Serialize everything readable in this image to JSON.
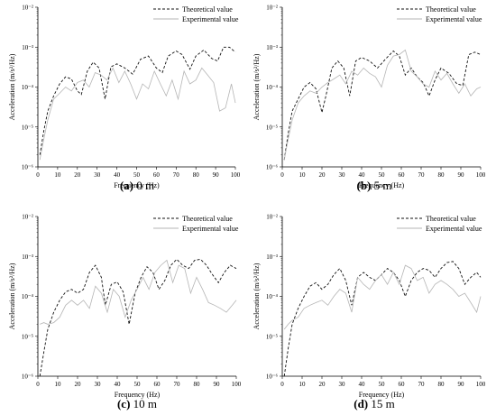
{
  "legend": {
    "theoretical": "Theoretical value",
    "experimental": "Experimental value"
  },
  "colors": {
    "theoretical": "#111111",
    "experimental": "#b5b5b5",
    "axis": "#000000"
  },
  "chart_data": [
    {
      "type": "line",
      "caption": {
        "letter": "(a)",
        "text": " 0 m"
      },
      "xlabel": "Frequency (Hz)",
      "ylabel": "Acceleration (m/s²/Hz)",
      "xlim": [
        0,
        100
      ],
      "ylim": [
        1e-06,
        0.01
      ],
      "yscale": "log",
      "xticks": [
        0,
        10,
        20,
        30,
        40,
        50,
        60,
        70,
        80,
        90,
        100
      ],
      "yticks": [
        {
          "v": 1e-06,
          "t": "10⁻⁶"
        },
        {
          "v": 1e-05,
          "t": "10⁻⁵"
        },
        {
          "v": 0.0001,
          "t": "10⁻⁴"
        },
        {
          "v": 0.001,
          "t": "10⁻³"
        },
        {
          "v": 0.01,
          "t": "10⁻²"
        }
      ],
      "series": [
        {
          "name": "Theoretical value",
          "style": "dashed",
          "x": [
            1,
            3,
            5,
            8,
            11,
            14,
            17,
            20,
            22,
            25,
            28,
            31,
            34,
            37,
            40,
            44,
            48,
            52,
            56,
            60,
            63,
            66,
            70,
            73,
            77,
            80,
            84,
            88,
            91,
            94,
            97,
            100
          ],
          "y": [
            2e-06,
            8e-06,
            2.5e-05,
            6e-05,
            0.00012,
            0.00018,
            0.00016,
            8e-05,
            6.5e-05,
            0.00025,
            0.00042,
            0.0003,
            5e-05,
            0.00032,
            0.00038,
            0.0003,
            0.00021,
            0.0005,
            0.0006,
            0.0003,
            0.00023,
            0.0006,
            0.0008,
            0.00065,
            0.00028,
            0.0006,
            0.00085,
            0.00052,
            0.00045,
            0.001,
            0.001,
            0.00075
          ]
        },
        {
          "name": "Experimental value",
          "style": "solid",
          "x": [
            1,
            3,
            5,
            8,
            11,
            14,
            17,
            20,
            23,
            26,
            29,
            32,
            35,
            38,
            41,
            44,
            47,
            50,
            53,
            56,
            59,
            62,
            65,
            68,
            71,
            74,
            77,
            80,
            83,
            86,
            89,
            92,
            95,
            98,
            100
          ],
          "y": [
            1.5e-06,
            5e-06,
            1.5e-05,
            5e-05,
            7e-05,
            0.0001,
            8e-05,
            0.00013,
            0.00015,
            0.0001,
            0.00023,
            0.0002,
            0.00015,
            0.0003,
            0.00013,
            0.00025,
            0.00012,
            5e-05,
            0.00012,
            9e-05,
            0.00025,
            0.00012,
            6e-05,
            0.00015,
            5e-05,
            0.00025,
            0.00012,
            0.00015,
            0.0003,
            0.0002,
            0.00013,
            2.5e-05,
            3e-05,
            0.00012,
            4e-05
          ]
        }
      ]
    },
    {
      "type": "line",
      "caption": {
        "letter": "(b)",
        "text": " 5 m"
      },
      "xlabel": "Frequency (Hz)",
      "ylabel": "Acceleration (m/s²/Hz)",
      "xlim": [
        0,
        100
      ],
      "ylim": [
        1e-06,
        0.01
      ],
      "yscale": "log",
      "xticks": [
        0,
        10,
        20,
        30,
        40,
        50,
        60,
        70,
        80,
        90,
        100
      ],
      "yticks": [
        {
          "v": 1e-06,
          "t": "10⁻⁶"
        },
        {
          "v": 1e-05,
          "t": "10⁻⁵"
        },
        {
          "v": 0.0001,
          "t": "10⁻⁴"
        },
        {
          "v": 0.001,
          "t": "10⁻³"
        },
        {
          "v": 0.01,
          "t": "10⁻²"
        }
      ],
      "series": [
        {
          "name": "Theoretical value",
          "style": "dashed",
          "x": [
            1,
            3,
            5,
            8,
            11,
            14,
            17,
            20,
            22,
            25,
            28,
            31,
            34,
            37,
            40,
            44,
            48,
            52,
            56,
            59,
            62,
            65,
            68,
            71,
            74,
            77,
            80,
            84,
            88,
            91,
            94,
            97,
            100
          ],
          "y": [
            1.5e-06,
            7e-06,
            2.5e-05,
            5e-05,
            0.0001,
            0.00013,
            9e-05,
            2.3e-05,
            6e-05,
            0.0003,
            0.00045,
            0.0003,
            6e-05,
            0.00045,
            0.00055,
            0.00045,
            0.0003,
            0.0005,
            0.0008,
            0.0006,
            0.0002,
            0.0003,
            0.00018,
            0.00013,
            6e-05,
            0.00015,
            0.0003,
            0.00022,
            0.00012,
            0.00011,
            0.00065,
            0.00075,
            0.00065
          ]
        },
        {
          "name": "Experimental value",
          "style": "solid",
          "x": [
            1,
            3,
            5,
            8,
            11,
            14,
            17,
            20,
            23,
            26,
            29,
            32,
            35,
            38,
            41,
            44,
            47,
            50,
            53,
            56,
            59,
            62,
            65,
            68,
            71,
            74,
            77,
            80,
            83,
            86,
            89,
            92,
            95,
            98,
            100
          ],
          "y": [
            1.5e-06,
            5e-06,
            1.5e-05,
            4e-05,
            6e-05,
            8e-05,
            7e-05,
            0.0001,
            0.00013,
            0.00016,
            0.0002,
            0.00012,
            0.00025,
            0.0002,
            0.0003,
            0.00022,
            0.00018,
            0.0001,
            0.00035,
            0.0006,
            0.00065,
            0.00085,
            0.00025,
            0.00018,
            0.00012,
            0.0001,
            0.00025,
            0.00015,
            0.00022,
            0.00012,
            7e-05,
            0.00012,
            6e-05,
            9e-05,
            0.0001
          ]
        }
      ]
    },
    {
      "type": "line",
      "caption": {
        "letter": "(c)",
        "text": " 10 m"
      },
      "xlabel": "Frequency (Hz)",
      "ylabel": "Acceleration (m/s²/Hz)",
      "xlim": [
        0,
        100
      ],
      "ylim": [
        1e-06,
        0.01
      ],
      "yscale": "log",
      "xticks": [
        0,
        10,
        20,
        30,
        40,
        50,
        60,
        70,
        80,
        90,
        100
      ],
      "yticks": [
        {
          "v": 1e-06,
          "t": "10⁻⁶"
        },
        {
          "v": 1e-05,
          "t": "10⁻⁵"
        },
        {
          "v": 0.0001,
          "t": "10⁻⁴"
        },
        {
          "v": 0.001,
          "t": "10⁻³"
        },
        {
          "v": 0.01,
          "t": "10⁻²"
        }
      ],
      "series": [
        {
          "name": "Theoretical value",
          "style": "dashed",
          "x": [
            1,
            3,
            5,
            8,
            11,
            14,
            17,
            20,
            23,
            26,
            29,
            32,
            34,
            37,
            40,
            43,
            46,
            49,
            52,
            55,
            58,
            61,
            64,
            67,
            70,
            73,
            76,
            79,
            82,
            85,
            88,
            91,
            94,
            97,
            100
          ],
          "y": [
            1e-06,
            4e-06,
            1.5e-05,
            4e-05,
            8e-05,
            0.00013,
            0.00015,
            0.00012,
            0.00015,
            0.0004,
            0.0006,
            0.0003,
            6e-05,
            0.0002,
            0.00023,
            0.00013,
            2e-05,
            0.00012,
            0.0003,
            0.00055,
            0.0004,
            0.00015,
            0.00025,
            0.0006,
            0.00085,
            0.0006,
            0.0005,
            0.0008,
            0.00085,
            0.0006,
            0.00035,
            0.00022,
            0.0004,
            0.0006,
            0.0005
          ]
        },
        {
          "name": "Experimental value",
          "style": "solid",
          "x": [
            1,
            3,
            5,
            8,
            11,
            14,
            17,
            20,
            23,
            26,
            29,
            32,
            35,
            38,
            41,
            44,
            47,
            50,
            53,
            56,
            59,
            62,
            65,
            68,
            71,
            74,
            77,
            80,
            83,
            86,
            89,
            92,
            95,
            98,
            100
          ],
          "y": [
            2e-05,
            2.2e-05,
            2e-05,
            2.2e-05,
            3e-05,
            6e-05,
            8e-05,
            6e-05,
            8e-05,
            5e-05,
            0.00018,
            0.00012,
            4e-05,
            0.00015,
            0.0001,
            3e-05,
            8e-05,
            0.00015,
            0.0003,
            0.00015,
            0.0004,
            0.0006,
            0.0008,
            0.00022,
            0.0006,
            0.0005,
            0.00012,
            0.0003,
            0.00015,
            7e-05,
            6e-05,
            5e-05,
            4e-05,
            6e-05,
            8e-05
          ]
        }
      ]
    },
    {
      "type": "line",
      "caption": {
        "letter": "(d)",
        "text": " 15 m"
      },
      "xlabel": "Frequency (Hz)",
      "ylabel": "Acceleration (m/s²/Hz)",
      "xlim": [
        0,
        100
      ],
      "ylim": [
        1e-06,
        0.01
      ],
      "yscale": "log",
      "xticks": [
        0,
        10,
        20,
        30,
        40,
        50,
        60,
        70,
        80,
        90,
        100
      ],
      "yticks": [
        {
          "v": 1e-06,
          "t": "10⁻⁶"
        },
        {
          "v": 1e-05,
          "t": "10⁻⁵"
        },
        {
          "v": 0.0001,
          "t": "10⁻⁴"
        },
        {
          "v": 0.001,
          "t": "10⁻³"
        },
        {
          "v": 0.01,
          "t": "10⁻²"
        }
      ],
      "series": [
        {
          "name": "Theoretical value",
          "style": "dashed",
          "x": [
            1,
            3,
            5,
            8,
            11,
            14,
            17,
            20,
            23,
            26,
            29,
            32,
            35,
            38,
            41,
            44,
            47,
            50,
            53,
            56,
            59,
            62,
            65,
            68,
            71,
            74,
            77,
            80,
            83,
            86,
            89,
            92,
            95,
            98,
            100
          ],
          "y": [
            1e-06,
            5e-06,
            2e-05,
            5e-05,
            0.0001,
            0.00018,
            0.00022,
            0.00015,
            0.0002,
            0.00035,
            0.0005,
            0.00025,
            6e-05,
            0.0003,
            0.0004,
            0.0003,
            0.00025,
            0.00035,
            0.0005,
            0.0004,
            0.00025,
            0.0001,
            0.00025,
            0.0004,
            0.0005,
            0.00045,
            0.0003,
            0.0005,
            0.0007,
            0.00075,
            0.0005,
            0.0002,
            0.0003,
            0.0004,
            0.0003
          ]
        },
        {
          "name": "Experimental value",
          "style": "solid",
          "x": [
            1,
            3,
            5,
            8,
            11,
            14,
            17,
            20,
            23,
            26,
            29,
            32,
            35,
            38,
            41,
            44,
            47,
            50,
            53,
            56,
            59,
            62,
            65,
            68,
            71,
            74,
            77,
            80,
            83,
            86,
            89,
            92,
            95,
            98,
            100
          ],
          "y": [
            1.5e-05,
            2e-05,
            2.5e-05,
            3e-05,
            5e-05,
            6e-05,
            7e-05,
            8e-05,
            6e-05,
            0.0001,
            0.00015,
            0.00012,
            4e-05,
            0.0003,
            0.0002,
            0.00015,
            0.00025,
            0.00035,
            0.0002,
            0.0004,
            0.0002,
            0.0006,
            0.0005,
            0.00025,
            0.0003,
            0.00012,
            0.0002,
            0.00025,
            0.0002,
            0.00015,
            0.0001,
            0.00012,
            7e-05,
            4e-05,
            0.0001
          ]
        }
      ]
    }
  ]
}
